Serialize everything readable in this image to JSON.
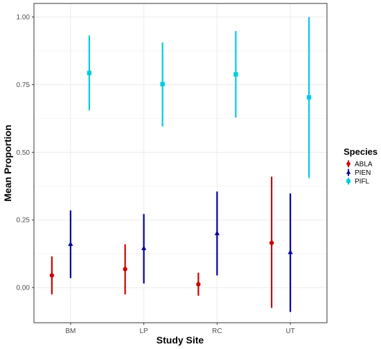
{
  "chart_data": {
    "type": "scatter",
    "subtype": "pointrange",
    "title": "",
    "xlabel": "Study Site",
    "ylabel": "Mean Proportion",
    "categories": [
      "BM",
      "LP",
      "RC",
      "UT"
    ],
    "ylim": [
      -0.13,
      1.05
    ],
    "yticks": [
      0.0,
      0.25,
      0.5,
      0.75,
      1.0
    ],
    "ytick_labels": [
      "0.00",
      "0.25",
      "0.50",
      "0.75",
      "1.00"
    ],
    "grid": true,
    "legend": {
      "title": "Species",
      "position": "right"
    },
    "series": [
      {
        "name": "ABLA",
        "color": "#cc0000",
        "marker": "circle",
        "values": [
          0.045,
          0.068,
          0.012,
          0.165
        ],
        "lower": [
          -0.025,
          -0.025,
          -0.03,
          -0.075
        ],
        "upper": [
          0.115,
          0.16,
          0.055,
          0.41
        ]
      },
      {
        "name": "PIEN",
        "color": "#000099",
        "marker": "triangle",
        "values": [
          0.16,
          0.145,
          0.2,
          0.13
        ],
        "lower": [
          0.035,
          0.015,
          0.045,
          -0.09
        ],
        "upper": [
          0.285,
          0.272,
          0.355,
          0.348
        ]
      },
      {
        "name": "PIFL",
        "color": "#00ccdd",
        "marker": "square",
        "values": [
          0.793,
          0.752,
          0.788,
          0.703
        ],
        "lower": [
          0.655,
          0.595,
          0.628,
          0.405
        ],
        "upper": [
          0.932,
          0.906,
          0.948,
          1.0
        ]
      }
    ]
  }
}
